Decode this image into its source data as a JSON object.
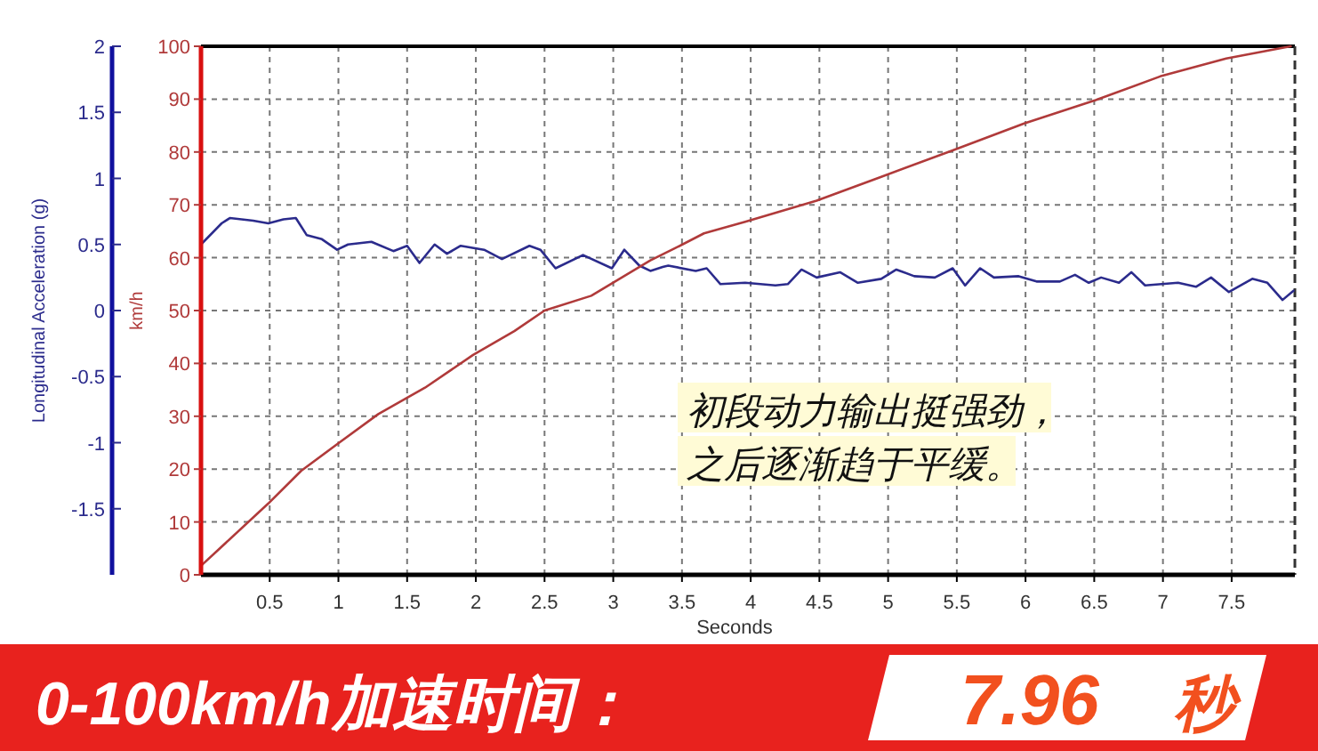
{
  "chart_data": {
    "type": "line",
    "xlabel": "Seconds",
    "ylabel": "Longitudinal Acceleration (g)",
    "y2label": "km/h",
    "xlim": [
      0,
      7.96
    ],
    "xticks": [
      0.5,
      1,
      1.5,
      2,
      2.5,
      3,
      3.5,
      4,
      4.5,
      5,
      5.5,
      6,
      6.5,
      7,
      7.5
    ],
    "ylim": [
      -2,
      2
    ],
    "yticks": [
      -1.5,
      -1,
      -0.5,
      0,
      0.5,
      1,
      1.5,
      2
    ],
    "y2lim": [
      0,
      100
    ],
    "y2ticks": [
      0,
      10,
      20,
      30,
      40,
      50,
      60,
      70,
      80,
      90,
      100
    ],
    "grid": true,
    "marker": "none",
    "line_style": "solid",
    "series": [
      {
        "color": "#2b2b8c",
        "axis": "y",
        "x": [
          0.0,
          0.15,
          0.21,
          0.38,
          0.49,
          0.6,
          0.69,
          0.77,
          0.88,
          0.99,
          1.07,
          1.24,
          1.4,
          1.5,
          1.59,
          1.7,
          1.79,
          1.89,
          2.06,
          2.19,
          2.39,
          2.47,
          2.58,
          2.78,
          2.99,
          3.08,
          3.19,
          3.27,
          3.36,
          3.4,
          3.6,
          3.68,
          3.78,
          3.96,
          4.07,
          4.18,
          4.27,
          4.37,
          4.48,
          4.65,
          4.78,
          4.95,
          5.06,
          5.19,
          5.34,
          5.47,
          5.56,
          5.67,
          5.77,
          5.95,
          6.08,
          6.25,
          6.36,
          6.46,
          6.55,
          6.68,
          6.77,
          6.87,
          7.11,
          7.24,
          7.35,
          7.48,
          7.65,
          7.76,
          7.87,
          7.95
        ],
        "values": [
          0.5,
          0.66,
          0.7,
          0.68,
          0.66,
          0.69,
          0.7,
          0.57,
          0.54,
          0.46,
          0.5,
          0.52,
          0.45,
          0.49,
          0.36,
          0.5,
          0.43,
          0.49,
          0.46,
          0.39,
          0.49,
          0.46,
          0.32,
          0.42,
          0.32,
          0.46,
          0.34,
          0.3,
          0.33,
          0.34,
          0.3,
          0.32,
          0.2,
          0.21,
          0.2,
          0.19,
          0.2,
          0.31,
          0.25,
          0.29,
          0.21,
          0.24,
          0.31,
          0.26,
          0.25,
          0.32,
          0.19,
          0.32,
          0.25,
          0.26,
          0.22,
          0.22,
          0.27,
          0.21,
          0.25,
          0.21,
          0.29,
          0.19,
          0.21,
          0.18,
          0.25,
          0.14,
          0.24,
          0.21,
          0.08,
          0.15
        ]
      },
      {
        "color": "#b03a3a",
        "axis": "y2",
        "x": [
          0.0,
          0.49,
          0.73,
          0.99,
          1.29,
          1.63,
          1.98,
          2.28,
          2.5,
          2.84,
          3.27,
          3.45,
          3.66,
          3.96,
          4.48,
          4.95,
          5.47,
          5.99,
          6.51,
          6.98,
          7.46,
          7.93
        ],
        "values": [
          1.7,
          13.5,
          19.7,
          24.7,
          30.4,
          35.4,
          41.6,
          46.1,
          50.0,
          52.8,
          59.5,
          61.8,
          64.6,
          66.8,
          70.8,
          75.3,
          80.3,
          85.4,
          89.8,
          94.3,
          97.7,
          100
        ]
      }
    ],
    "annotations": [
      "初段动力输出挺强劲，",
      "之后逐渐趋于平缓。",
      "0-100km/h加速时间：",
      "7.96",
      "秒"
    ]
  }
}
